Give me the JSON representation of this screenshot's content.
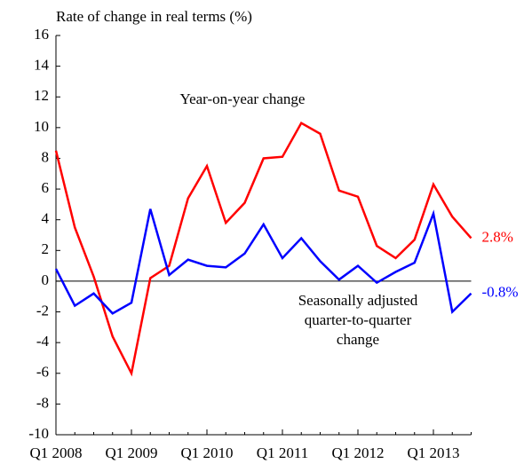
{
  "chart_data": {
    "type": "line",
    "y_label": "Rate of change in real terms (%)",
    "categories": [
      "Q1 2008",
      null,
      null,
      null,
      "Q1 2009",
      null,
      null,
      null,
      "Q1 2010",
      null,
      null,
      null,
      "Q1 2011",
      null,
      null,
      null,
      "Q1 2012",
      null,
      null,
      null,
      "Q1 2013",
      null,
      null
    ],
    "series": [
      {
        "name": "Year-on-year change",
        "color": "#ff0000",
        "values": [
          8.5,
          3.5,
          0.3,
          -3.6,
          -6.0,
          0.2,
          1.0,
          5.4,
          7.5,
          3.8,
          5.1,
          8.0,
          8.1,
          10.3,
          9.6,
          5.9,
          5.5,
          2.3,
          1.5,
          2.7,
          6.3,
          4.2,
          2.8
        ],
        "value_labels": [
          null,
          null,
          null,
          null,
          null,
          null,
          null,
          null,
          null,
          null,
          null,
          null,
          null,
          null,
          null,
          null,
          null,
          null,
          null,
          null,
          null,
          null,
          "2.8%"
        ]
      },
      {
        "name": "Seasonally adjusted quarter-to-quarter change",
        "color": "#0000ff",
        "values": [
          0.8,
          -1.6,
          -0.8,
          -2.1,
          -1.4,
          4.7,
          0.4,
          1.4,
          1.0,
          0.9,
          1.8,
          3.7,
          1.5,
          2.8,
          1.3,
          0.1,
          1.0,
          -0.1,
          0.6,
          1.2,
          4.4,
          -2.0,
          -0.8
        ],
        "value_labels": [
          null,
          null,
          null,
          null,
          null,
          null,
          null,
          null,
          null,
          null,
          null,
          null,
          null,
          null,
          null,
          null,
          null,
          null,
          null,
          null,
          null,
          null,
          "-0.8%"
        ]
      }
    ],
    "ylim": [
      -10,
      16
    ],
    "yticks": [
      -10,
      -8,
      -6,
      -4,
      -2,
      0,
      2,
      4,
      6,
      8,
      10,
      12,
      14,
      16
    ],
    "grid": false
  }
}
